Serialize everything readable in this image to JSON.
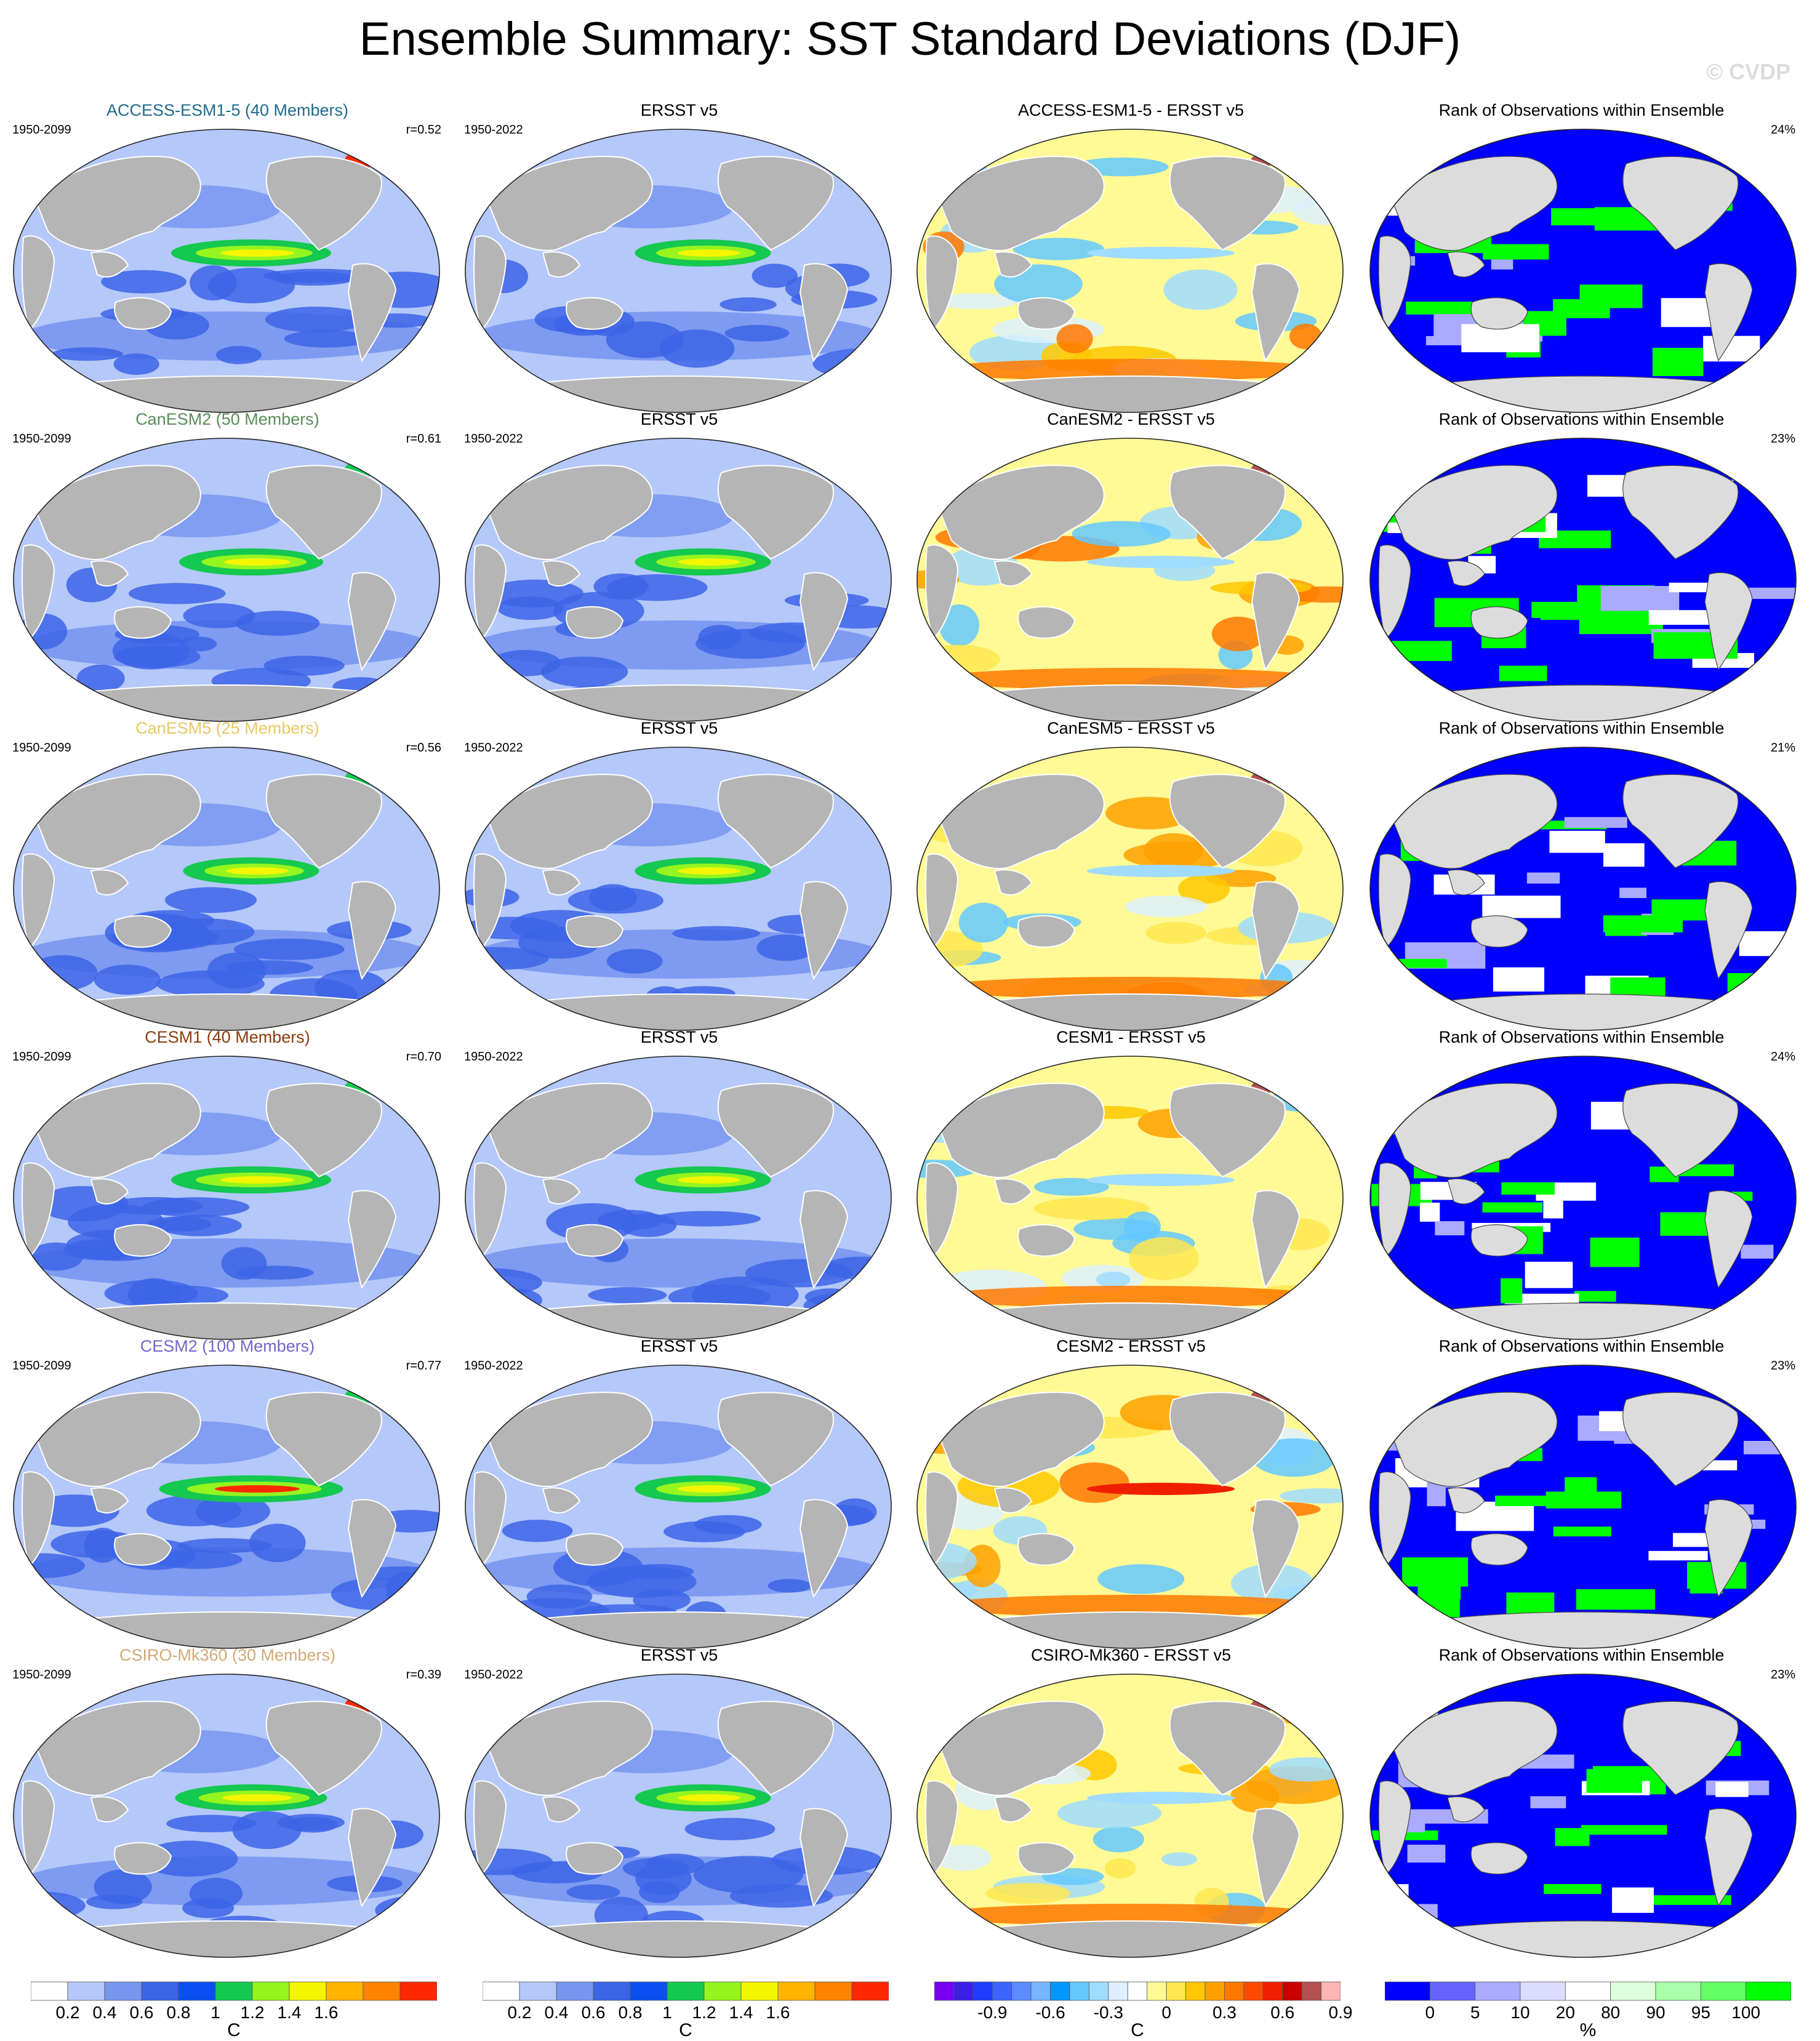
{
  "title": "Ensemble Summary: SST Standard Deviations (DJF)",
  "watermark": "© CVDP",
  "colors": {
    "land": "#b5b5b5",
    "land_light": "#dcdcdc",
    "ocean_frame": "#ffffff",
    "stddev_scale": [
      "#ffffff",
      "#b4c8fa",
      "#7896f0",
      "#3c64e6",
      "#0a50f0",
      "#14c850",
      "#96f51e",
      "#f5f500",
      "#ffb400",
      "#ff8200",
      "#ff2800"
    ],
    "diff_scale": [
      "#7800f0",
      "#3c1ee6",
      "#1e3cff",
      "#3c64ff",
      "#5a8cff",
      "#78b4ff",
      "#0096ff",
      "#64c8ff",
      "#a0dcff",
      "#dcf0ff",
      "#ffffff",
      "#fffa96",
      "#ffe650",
      "#ffc800",
      "#ffa000",
      "#ff7800",
      "#ff4b00",
      "#f01e00",
      "#c80000",
      "#b45050",
      "#ffb4b4"
    ],
    "rank_scale": [
      "#0000ff",
      "#6464ff",
      "#aaaaff",
      "#dcdcff",
      "#ffffff",
      "#dcffdc",
      "#aaffaa",
      "#64ff64",
      "#00ff00"
    ]
  },
  "rows": [
    {
      "model": "ACCESS-ESM1-5 (40 Members)",
      "model_short": "ACCESS-ESM1-5",
      "model_color": "#1f6a8c",
      "period": "1950-2099",
      "r": "r=0.52",
      "obs": "ERSST v5",
      "obs_period": "1950-2022",
      "rank_pct": "24%"
    },
    {
      "model": "CanESM2 (50 Members)",
      "model_short": "CanESM2",
      "model_color": "#5a8c5a",
      "period": "1950-2099",
      "r": "r=0.61",
      "obs": "ERSST v5",
      "obs_period": "1950-2022",
      "rank_pct": "23%"
    },
    {
      "model": "CanESM5 (25 Members)",
      "model_short": "CanESM5",
      "model_color": "#e6c864",
      "period": "1950-2099",
      "r": "r=0.56",
      "obs": "ERSST v5",
      "obs_period": "1950-2022",
      "rank_pct": "21%"
    },
    {
      "model": "CESM1 (40 Members)",
      "model_short": "CESM1",
      "model_color": "#8c3c0a",
      "period": "1950-2099",
      "r": "r=0.70",
      "obs": "ERSST v5",
      "obs_period": "1950-2022",
      "rank_pct": "24%"
    },
    {
      "model": "CESM2 (100 Members)",
      "model_short": "CESM2",
      "model_color": "#7864c8",
      "period": "1950-2099",
      "r": "r=0.77",
      "obs": "ERSST v5",
      "obs_period": "1950-2022",
      "rank_pct": "23%"
    },
    {
      "model": "CSIRO-Mk360 (30 Members)",
      "model_short": "CSIRO-Mk360",
      "model_color": "#d2aa78",
      "period": "1950-2099",
      "r": "r=0.39",
      "obs": "ERSST v5",
      "obs_period": "1950-2022",
      "rank_pct": "23%"
    }
  ],
  "col_titles": {
    "obs": "ERSST v5",
    "diff_suffix": " - ERSST v5",
    "rank": "Rank of Observations within Ensemble"
  },
  "colorbars": [
    {
      "id": "stddev-model",
      "labels": [
        "0.2",
        "0.4",
        "0.6",
        "0.8",
        "1",
        "1.2",
        "1.4",
        "1.6"
      ],
      "unit": "C"
    },
    {
      "id": "stddev-obs",
      "labels": [
        "0.2",
        "0.4",
        "0.6",
        "0.8",
        "1",
        "1.2",
        "1.4",
        "1.6"
      ],
      "unit": "C"
    },
    {
      "id": "difference",
      "labels": [
        "-0.9",
        "-0.6",
        "-0.3",
        "0",
        "0.3",
        "0.6",
        "0.9"
      ],
      "unit": "C"
    },
    {
      "id": "rank",
      "labels": [
        "0",
        "5",
        "10",
        "20",
        "80",
        "90",
        "95",
        "100"
      ],
      "unit": "%"
    }
  ]
}
